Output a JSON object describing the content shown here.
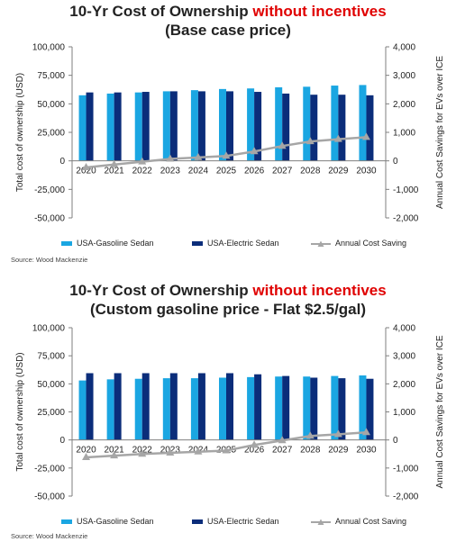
{
  "colors": {
    "gasoline": "#1aa6e2",
    "electric": "#0b2d7a",
    "saving": "#a6a6a6",
    "highlight": "#e00000",
    "axis": "#7f7f7f"
  },
  "chart_data": [
    {
      "type": "bar",
      "title": "10-Yr Cost of Ownership without incentives",
      "title_plain": "10-Yr Cost of Ownership",
      "title_highlight": "without incentives",
      "subtitle": "(Base case price)",
      "categories": [
        "2020",
        "2021",
        "2022",
        "2023",
        "2024",
        "2025",
        "2026",
        "2027",
        "2028",
        "2029",
        "2030"
      ],
      "ylabel": "Total cost of ownership (USD)",
      "ylabel_right": "Annual Cost Savings for EVs over ICE",
      "ylim": [
        -50000,
        100000
      ],
      "ylim_right": [
        -2000,
        4000
      ],
      "y_ticks": [
        "-50,000",
        "-25,000",
        "0",
        "25,000",
        "50,000",
        "75,000",
        "100,000"
      ],
      "y_ticks_right": [
        "-2,000",
        "-1,000",
        "0",
        "1,000",
        "2,000",
        "3,000",
        "4,000"
      ],
      "series": [
        {
          "name": "USA-Gasoline Sedan",
          "kind": "bar",
          "values": [
            57500,
            59000,
            60000,
            61000,
            62000,
            63000,
            63500,
            64500,
            65000,
            66000,
            66500
          ]
        },
        {
          "name": "USA-Electric Sedan",
          "kind": "bar",
          "values": [
            60000,
            60000,
            60500,
            61000,
            61000,
            61000,
            60500,
            59000,
            58000,
            58000,
            57500
          ]
        },
        {
          "name": "Annual Cost Saving",
          "kind": "line",
          "axis": "right",
          "values": [
            -230,
            -130,
            -30,
            70,
            120,
            170,
            330,
            520,
            680,
            760,
            830
          ]
        }
      ],
      "source": "Source: Wood Mackenzie",
      "legend": "bottom"
    },
    {
      "type": "bar",
      "title": "10-Yr Cost of Ownership without incentives",
      "title_plain": "10-Yr Cost of Ownership",
      "title_highlight": "without incentives",
      "subtitle": "(Custom gasoline price - Flat $2.5/gal)",
      "categories": [
        "2020",
        "2021",
        "2022",
        "2023",
        "2024",
        "2025",
        "2026",
        "2027",
        "2028",
        "2029",
        "2030"
      ],
      "ylabel": "Total cost of ownership (USD)",
      "ylabel_right": "Annual Cost Savings for EVs over ICE",
      "ylim": [
        -50000,
        100000
      ],
      "ylim_right": [
        -2000,
        4000
      ],
      "y_ticks": [
        "-50,000",
        "-25,000",
        "0",
        "25,000",
        "50,000",
        "75,000",
        "100,000"
      ],
      "y_ticks_right": [
        "-2,000",
        "-1,000",
        "0",
        "1,000",
        "2,000",
        "3,000",
        "4,000"
      ],
      "series": [
        {
          "name": "USA-Gasoline Sedan",
          "kind": "bar",
          "values": [
            53000,
            54000,
            54500,
            55000,
            55000,
            55500,
            56000,
            56500,
            56500,
            57000,
            57500
          ]
        },
        {
          "name": "USA-Electric Sedan",
          "kind": "bar",
          "values": [
            59500,
            59500,
            59500,
            59500,
            59500,
            59500,
            58500,
            57000,
            55500,
            55000,
            54500
          ]
        },
        {
          "name": "Annual Cost Saving",
          "kind": "line",
          "axis": "right",
          "values": [
            -620,
            -560,
            -500,
            -460,
            -420,
            -380,
            -180,
            -20,
            140,
            200,
            270
          ]
        }
      ],
      "source": "Source: Wood Mackenzie",
      "legend": "bottom"
    }
  ]
}
